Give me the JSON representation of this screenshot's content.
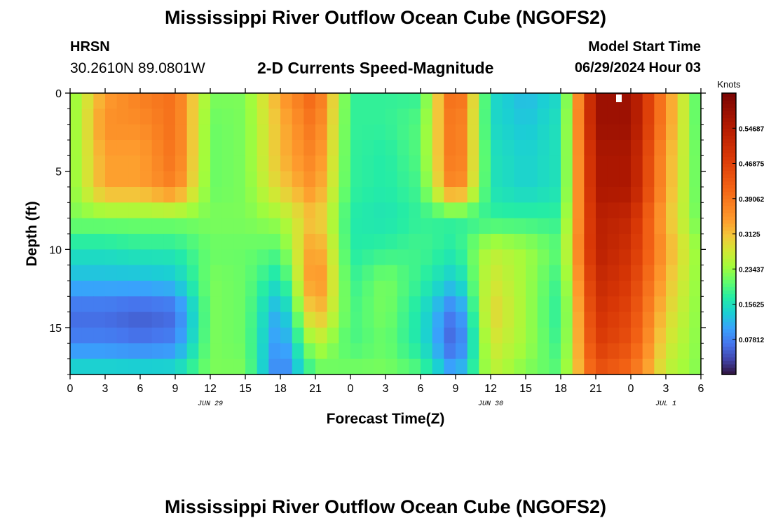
{
  "header": {
    "title": "Mississippi River Outflow Ocean Cube (NGOFS2)",
    "station": "HRSN",
    "coordinates": "30.2610N  89.0801W",
    "chart_title": "2-D Currents Speed-Magnitude",
    "model_label": "Model Start Time",
    "model_start": "06/29/2024 Hour 03"
  },
  "footer": {
    "title": "Mississippi River Outflow Ocean Cube (NGOFS2)"
  },
  "chart_data": {
    "type": "heatmap",
    "title": "2-D Currents Speed-Magnitude",
    "xlabel": "Forecast Time(Z)",
    "ylabel": "Depth (ft)",
    "x_tick_labels": [
      "0",
      "3",
      "6",
      "9",
      "12",
      "15",
      "18",
      "21",
      "0",
      "3",
      "6",
      "9",
      "12",
      "15",
      "18",
      "21",
      "0",
      "3",
      "6"
    ],
    "date_labels": [
      "JUN 29",
      "JUN 30",
      "JUL 1"
    ],
    "y_ticks": [
      0,
      5,
      10,
      15
    ],
    "ylim": [
      0,
      18
    ],
    "y_inverted": true,
    "x_range_hours": [
      0,
      54
    ],
    "colorbar": {
      "label": "Knots",
      "range": [
        0,
        0.625
      ],
      "tick_values": [
        0.07812,
        0.15625,
        0.23437,
        0.3125,
        0.39062,
        0.46875,
        0.54687
      ],
      "tick_labels": [
        "0.07812",
        "0.15625",
        "0.23437",
        "0.3125",
        "0.39062",
        "0.46875",
        "0.54687"
      ],
      "colormap": "turbo"
    },
    "x_hours": [
      0,
      3,
      6,
      9,
      12,
      15,
      18,
      21,
      24,
      27,
      30,
      33,
      36,
      39,
      42,
      45,
      48,
      51,
      54
    ],
    "depths_ft": [
      0,
      2,
      4,
      6,
      8,
      10,
      12,
      14,
      16,
      18
    ],
    "z_knots": [
      [
        0.22,
        0.34,
        0.38,
        0.4,
        0.22,
        0.22,
        0.34,
        0.42,
        0.18,
        0.18,
        0.18,
        0.44,
        0.15,
        0.12,
        0.15,
        0.58,
        0.58,
        0.36,
        0.18
      ],
      [
        0.22,
        0.36,
        0.36,
        0.4,
        0.21,
        0.22,
        0.32,
        0.4,
        0.18,
        0.18,
        0.2,
        0.42,
        0.15,
        0.13,
        0.16,
        0.58,
        0.58,
        0.36,
        0.18
      ],
      [
        0.22,
        0.34,
        0.34,
        0.4,
        0.21,
        0.22,
        0.32,
        0.38,
        0.18,
        0.17,
        0.2,
        0.42,
        0.16,
        0.14,
        0.16,
        0.56,
        0.56,
        0.34,
        0.19
      ],
      [
        0.22,
        0.34,
        0.34,
        0.38,
        0.21,
        0.22,
        0.3,
        0.36,
        0.18,
        0.17,
        0.19,
        0.4,
        0.16,
        0.14,
        0.16,
        0.56,
        0.56,
        0.34,
        0.19
      ],
      [
        0.22,
        0.22,
        0.22,
        0.22,
        0.22,
        0.22,
        0.24,
        0.32,
        0.17,
        0.16,
        0.18,
        0.18,
        0.18,
        0.18,
        0.18,
        0.54,
        0.52,
        0.32,
        0.2
      ],
      [
        0.16,
        0.16,
        0.17,
        0.17,
        0.21,
        0.21,
        0.2,
        0.36,
        0.17,
        0.18,
        0.19,
        0.17,
        0.26,
        0.24,
        0.2,
        0.54,
        0.5,
        0.34,
        0.22
      ],
      [
        0.12,
        0.12,
        0.12,
        0.13,
        0.22,
        0.21,
        0.15,
        0.38,
        0.18,
        0.22,
        0.18,
        0.13,
        0.28,
        0.24,
        0.18,
        0.52,
        0.48,
        0.32,
        0.22
      ],
      [
        0.06,
        0.06,
        0.05,
        0.06,
        0.22,
        0.21,
        0.1,
        0.34,
        0.19,
        0.22,
        0.16,
        0.06,
        0.3,
        0.24,
        0.17,
        0.5,
        0.46,
        0.3,
        0.22
      ],
      [
        0.08,
        0.08,
        0.07,
        0.08,
        0.22,
        0.21,
        0.08,
        0.26,
        0.19,
        0.21,
        0.16,
        0.04,
        0.28,
        0.24,
        0.18,
        0.48,
        0.44,
        0.28,
        0.22
      ],
      [
        0.16,
        0.16,
        0.16,
        0.16,
        0.22,
        0.22,
        0.06,
        0.2,
        0.22,
        0.22,
        0.2,
        0.1,
        0.26,
        0.22,
        0.2,
        0.44,
        0.4,
        0.26,
        0.22
      ]
    ]
  }
}
